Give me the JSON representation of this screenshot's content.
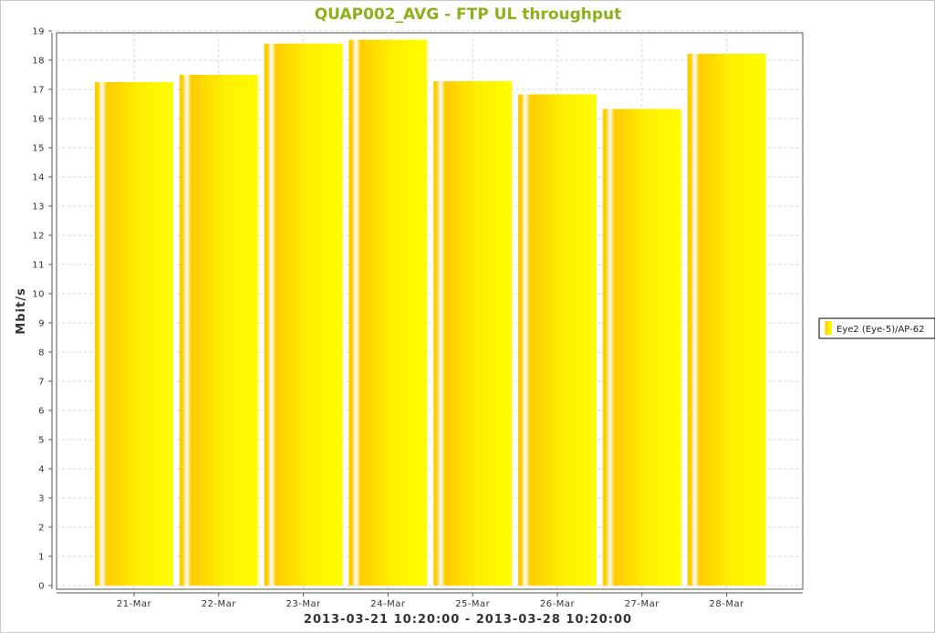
{
  "chart_data": {
    "type": "bar",
    "title": "QUAP002_AVG - FTP UL throughput",
    "xlabel": "2013-03-21 10:20:00 - 2013-03-28 10:20:00",
    "ylabel": "Mbit/s",
    "ylim": [
      0,
      19
    ],
    "yticks": [
      0,
      1,
      2,
      3,
      4,
      5,
      6,
      7,
      8,
      9,
      10,
      11,
      12,
      13,
      14,
      15,
      16,
      17,
      18,
      19
    ],
    "categories": [
      "21-Mar",
      "22-Mar",
      "23-Mar",
      "24-Mar",
      "25-Mar",
      "26-Mar",
      "27-Mar",
      "28-Mar"
    ],
    "series": [
      {
        "name": "Eye2 (Eye-5)/AP-62",
        "values": [
          17.25,
          17.5,
          18.57,
          18.7,
          17.28,
          16.83,
          16.33,
          18.22
        ]
      }
    ],
    "grid": true,
    "legend_position": "right",
    "colors": {
      "title": "#8db11a",
      "bar_light": "#ffffff",
      "bar_gold": "#ffcc00",
      "bar_yellow": "#ffff00",
      "grid": "#d4d4d4",
      "axis": "#555555"
    }
  }
}
